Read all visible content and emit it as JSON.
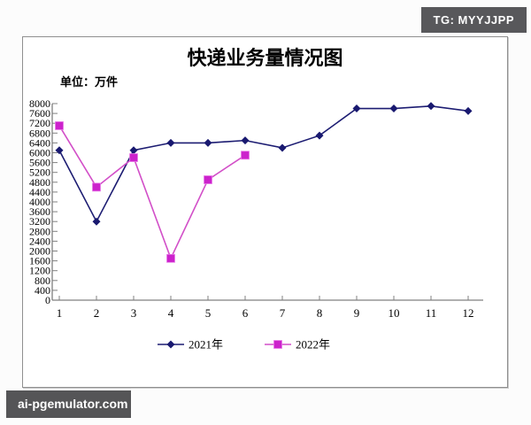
{
  "badge": {
    "text": "TG: MYYJJPP"
  },
  "watermark": {
    "text": "ai-pgemulator.com"
  },
  "chart_data": {
    "type": "line",
    "title": "快递业务量情况图",
    "unit_label": "单位：万件",
    "xlabel": "",
    "ylabel": "",
    "x": [
      1,
      2,
      3,
      4,
      5,
      6,
      7,
      8,
      9,
      10,
      11,
      12
    ],
    "series": [
      {
        "name": "2021年",
        "marker": "diamond",
        "line_color": "#1c1c72",
        "marker_color": "#191970",
        "values": [
          6100,
          3200,
          6100,
          6400,
          6400,
          6500,
          6200,
          6700,
          7800,
          7800,
          7900,
          7700
        ]
      },
      {
        "name": "2022年",
        "marker": "square",
        "line_color": "#d24fc8",
        "marker_color": "#cc22cc",
        "values": [
          7100,
          4600,
          5800,
          1700,
          4900,
          5900,
          null,
          null,
          null,
          null,
          null,
          null
        ]
      }
    ],
    "ylim": [
      0,
      8000
    ],
    "ytick_step": 400,
    "grid": false,
    "legend_position": "bottom",
    "axis_color": "#808080",
    "tick_label_color": "#000000"
  }
}
